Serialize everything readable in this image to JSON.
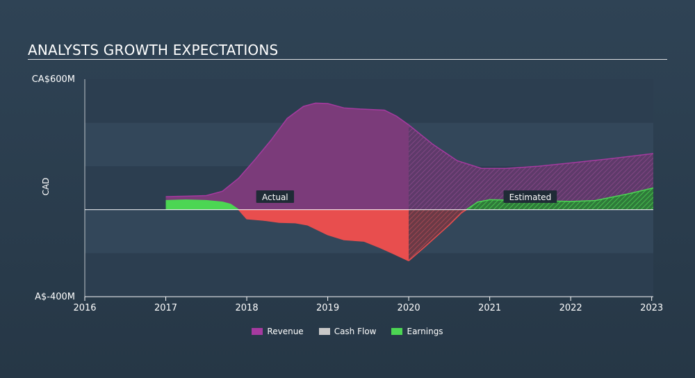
{
  "title": "ANALYSTS GROWTH EXPECTATIONS",
  "colors": {
    "revenue": "#7b3b7a",
    "revenue_line": "#a63aa0",
    "earnings_pos": "#4cd653",
    "earnings_neg": "#e84e4e",
    "cashflow": "#c8c8c8"
  },
  "chart_data": {
    "type": "area",
    "title": "ANALYSTS GROWTH EXPECTATIONS",
    "ylabel": "CAD",
    "xlabel": "",
    "xlim": [
      2016,
      2023.02
    ],
    "ylim": [
      -400,
      600
    ],
    "x_ticks": [
      "2016",
      "2017",
      "2018",
      "2019",
      "2020",
      "2021",
      "2022",
      "2023"
    ],
    "y_tick_labels": {
      "top": "CA$600M",
      "bottom": "A$-400M"
    },
    "grid": true,
    "actual_label": "Actual",
    "estimated_label": "Estimated",
    "forecast_start": 2020,
    "legend_position": "bottom",
    "legend": [
      "Revenue",
      "Cash Flow",
      "Earnings"
    ],
    "series": [
      {
        "name": "Revenue",
        "x": [
          2017.0,
          2017.25,
          2017.5,
          2017.7,
          2017.9,
          2018.1,
          2018.3,
          2018.5,
          2018.7,
          2018.85,
          2019.0,
          2019.2,
          2019.4,
          2019.7,
          2019.85,
          2020.0,
          2020.3,
          2020.6,
          2020.9,
          2021.2,
          2021.6,
          2022.0,
          2022.5,
          2023.02
        ],
        "values": [
          60,
          62,
          65,
          85,
          145,
          230,
          320,
          420,
          475,
          490,
          488,
          468,
          463,
          458,
          430,
          390,
          300,
          225,
          190,
          190,
          200,
          215,
          235,
          258
        ]
      },
      {
        "name": "Earnings",
        "x": [
          2017.0,
          2017.25,
          2017.5,
          2017.7,
          2017.8,
          2017.9,
          2018.0,
          2018.2,
          2018.4,
          2018.6,
          2018.75,
          2019.0,
          2019.2,
          2019.45,
          2019.65,
          2019.8,
          2020.0,
          2020.2,
          2020.5,
          2020.65,
          2020.85,
          2021.0,
          2021.5,
          2022.0,
          2022.3,
          2022.7,
          2023.02
        ],
        "values": [
          42,
          45,
          42,
          35,
          25,
          0,
          -42,
          -48,
          -58,
          -60,
          -70,
          -115,
          -138,
          -145,
          -175,
          -200,
          -235,
          -170,
          -70,
          -15,
          35,
          46,
          42,
          38,
          42,
          72,
          100
        ]
      }
    ]
  }
}
